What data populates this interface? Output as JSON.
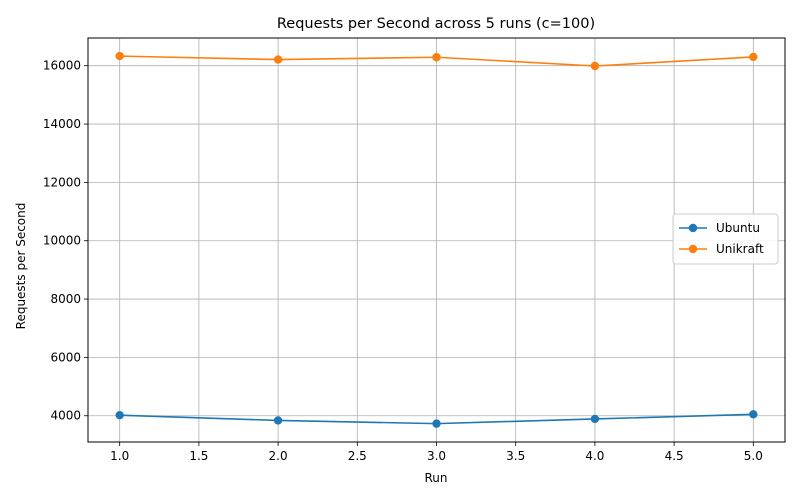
{
  "chart_data": {
    "type": "line",
    "title": "Requests per Second across 5 runs (c=100)",
    "xlabel": "Run",
    "ylabel": "Requests per Second",
    "x": [
      1,
      2,
      3,
      4,
      5
    ],
    "xlim": [
      0.8,
      5.2
    ],
    "ylim": [
      3100,
      16950
    ],
    "xticks": [
      1.0,
      1.5,
      2.0,
      2.5,
      3.0,
      3.5,
      4.0,
      4.5,
      5.0
    ],
    "xtick_labels": [
      "1.0",
      "1.5",
      "2.0",
      "2.5",
      "3.0",
      "3.5",
      "4.0",
      "4.5",
      "5.0"
    ],
    "yticks": [
      4000,
      6000,
      8000,
      10000,
      12000,
      14000,
      16000
    ],
    "ytick_labels": [
      "4000",
      "6000",
      "8000",
      "10000",
      "12000",
      "14000",
      "16000"
    ],
    "grid": true,
    "legend_position": "center-right",
    "series": [
      {
        "name": "Ubuntu",
        "color": "#1f77b4",
        "marker": "circle",
        "values": [
          4020,
          3840,
          3730,
          3890,
          4050
        ]
      },
      {
        "name": "Unikraft",
        "color": "#ff7f0e",
        "marker": "circle",
        "values": [
          16330,
          16210,
          16290,
          15990,
          16300
        ]
      }
    ]
  }
}
